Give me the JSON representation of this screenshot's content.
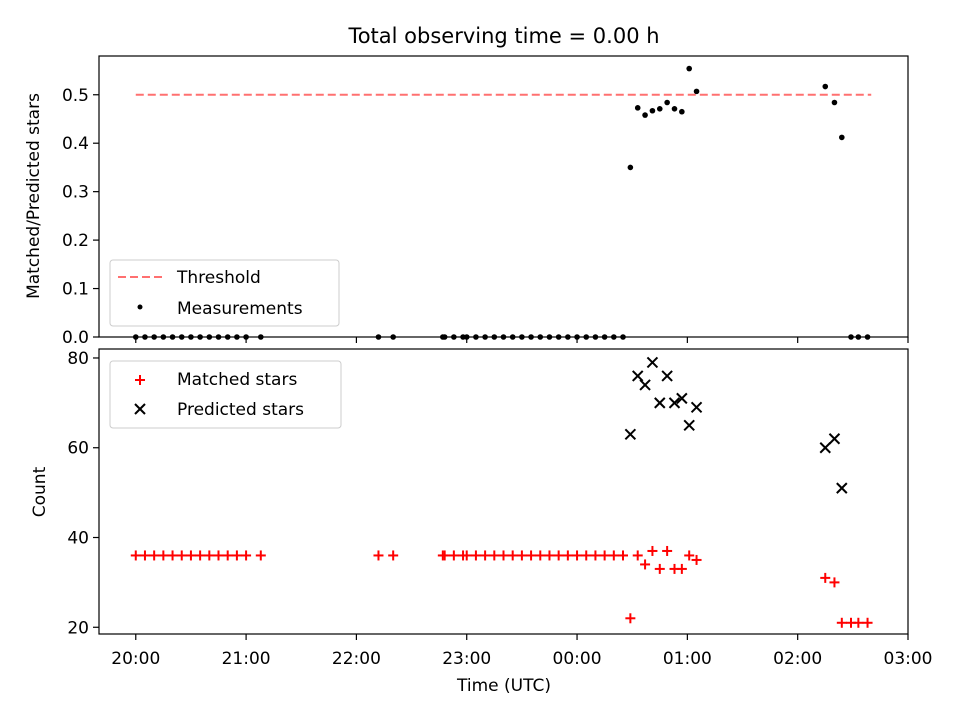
{
  "figure": {
    "title": "Total observing time = 0.00 h"
  },
  "chart_data": [
    {
      "type": "scatter",
      "ylabel": "Matched/Predicted stars",
      "xlabel": "",
      "xlim": [
        "19:40",
        "03:00"
      ],
      "ylim": [
        0,
        0.58
      ],
      "yticks": [
        "0.0",
        "0.1",
        "0.2",
        "0.3",
        "0.4",
        "0.5"
      ],
      "legend": {
        "placement": "bottom-left"
      },
      "series": [
        {
          "name": "Threshold",
          "kind": "dashed-line",
          "color": "#ff7070",
          "x": [
            "20:00",
            "02:40"
          ],
          "y": [
            0.5,
            0.5
          ]
        },
        {
          "name": "Measurements",
          "kind": "points",
          "color": "#000000",
          "x": [
            "20:00",
            "20:05",
            "20:10",
            "20:15",
            "20:20",
            "20:25",
            "20:30",
            "20:35",
            "20:40",
            "20:45",
            "20:50",
            "20:55",
            "21:00",
            "21:08",
            "22:12",
            "22:20",
            "22:47",
            "22:48",
            "22:53",
            "22:58",
            "23:00",
            "23:05",
            "23:10",
            "23:15",
            "23:20",
            "23:25",
            "23:30",
            "23:35",
            "23:40",
            "23:45",
            "23:50",
            "23:55",
            "00:00",
            "00:05",
            "00:10",
            "00:15",
            "00:20",
            "00:25",
            "00:29",
            "00:33",
            "00:37",
            "00:41",
            "00:45",
            "00:49",
            "00:53",
            "00:57",
            "01:01",
            "01:05",
            "02:15",
            "02:20",
            "02:24",
            "02:29",
            "02:33",
            "02:38"
          ],
          "y": [
            0,
            0,
            0,
            0,
            0,
            0,
            0,
            0,
            0,
            0,
            0,
            0,
            0,
            0,
            0,
            0,
            0,
            0,
            0,
            0,
            0,
            0,
            0,
            0,
            0,
            0,
            0,
            0,
            0,
            0,
            0,
            0,
            0,
            0,
            0,
            0,
            0,
            0,
            0.35,
            0.473,
            0.458,
            0.467,
            0.471,
            0.484,
            0.471,
            0.465,
            0.554,
            0.507,
            0.517,
            0.484,
            0.412,
            0,
            0,
            0
          ]
        }
      ]
    },
    {
      "type": "scatter",
      "ylabel": "Count",
      "xlabel": "Time (UTC)",
      "xlim": [
        "19:40",
        "03:00"
      ],
      "ylim": [
        18.5,
        82
      ],
      "yticks": [
        "20",
        "40",
        "60",
        "80"
      ],
      "xticks": [
        "20:00",
        "21:00",
        "22:00",
        "23:00",
        "00:00",
        "01:00",
        "02:00",
        "03:00"
      ],
      "legend": {
        "placement": "top-left"
      },
      "series": [
        {
          "name": "Matched stars",
          "kind": "plus",
          "color": "#ff0000",
          "x": [
            "20:00",
            "20:05",
            "20:10",
            "20:15",
            "20:20",
            "20:25",
            "20:30",
            "20:35",
            "20:40",
            "20:45",
            "20:50",
            "20:55",
            "21:00",
            "21:08",
            "22:12",
            "22:20",
            "22:47",
            "22:48",
            "22:53",
            "22:58",
            "23:00",
            "23:05",
            "23:10",
            "23:15",
            "23:20",
            "23:25",
            "23:30",
            "23:35",
            "23:40",
            "23:45",
            "23:50",
            "23:55",
            "00:00",
            "00:05",
            "00:10",
            "00:15",
            "00:20",
            "00:25",
            "00:29",
            "00:33",
            "00:37",
            "00:41",
            "00:45",
            "00:49",
            "00:53",
            "00:57",
            "01:01",
            "01:05",
            "02:15",
            "02:20",
            "02:24",
            "02:29",
            "02:33",
            "02:38"
          ],
          "y": [
            36,
            36,
            36,
            36,
            36,
            36,
            36,
            36,
            36,
            36,
            36,
            36,
            36,
            36,
            36,
            36,
            36,
            36,
            36,
            36,
            36,
            36,
            36,
            36,
            36,
            36,
            36,
            36,
            36,
            36,
            36,
            36,
            36,
            36,
            36,
            36,
            36,
            36,
            22,
            36,
            34,
            37,
            33,
            37,
            33,
            33,
            36,
            35,
            31,
            30,
            21,
            21,
            21,
            21
          ]
        },
        {
          "name": "Predicted stars",
          "kind": "cross",
          "color": "#000000",
          "x": [
            "00:29",
            "00:33",
            "00:37",
            "00:41",
            "00:45",
            "00:49",
            "00:53",
            "00:57",
            "01:01",
            "01:05",
            "02:15",
            "02:20",
            "02:24"
          ],
          "y": [
            63,
            76,
            74,
            79,
            70,
            76,
            70,
            71,
            65,
            69,
            60,
            62,
            51
          ]
        }
      ]
    }
  ]
}
